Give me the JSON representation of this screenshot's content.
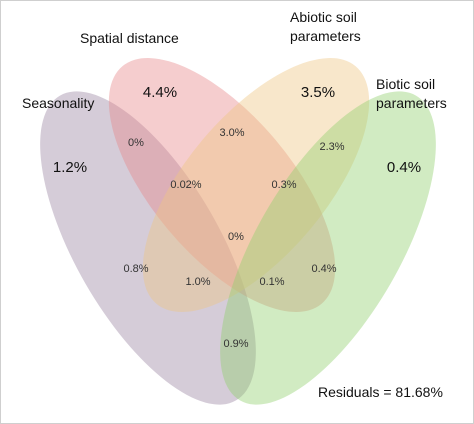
{
  "sets": [
    {
      "key": "seasonality",
      "label_lines": [
        "Seasonality"
      ],
      "color": "#9b86a3"
    },
    {
      "key": "spatial",
      "label_lines": [
        "Spatial distance"
      ],
      "color": "#e7878a"
    },
    {
      "key": "abiotic",
      "label_lines": [
        "Abiotic soil",
        "parameters"
      ],
      "color": "#efc682"
    },
    {
      "key": "biotic",
      "label_lines": [
        "Biotic soil",
        "parameters"
      ],
      "color": "#92cf6e"
    }
  ],
  "regions": {
    "seasonality_only": "1.2%",
    "spatial_only": "4.4%",
    "abiotic_only": "3.5%",
    "biotic_only": "0.4%",
    "seasonality_spatial": "0%",
    "spatial_abiotic": "3.0%",
    "abiotic_biotic": "2.3%",
    "seasonality_spatial_abiotic": "0.02%",
    "spatial_abiotic_biotic": "0.3%",
    "all_four": "0%",
    "seasonality_abiotic": "0.8%",
    "spatial_biotic": "0.4%",
    "seasonality_abiotic_biotic": "1.0%",
    "seasonality_spatial_biotic": "0.1%",
    "seasonality_biotic": "0.9%"
  },
  "residuals": "Residuals = 81.68%"
}
